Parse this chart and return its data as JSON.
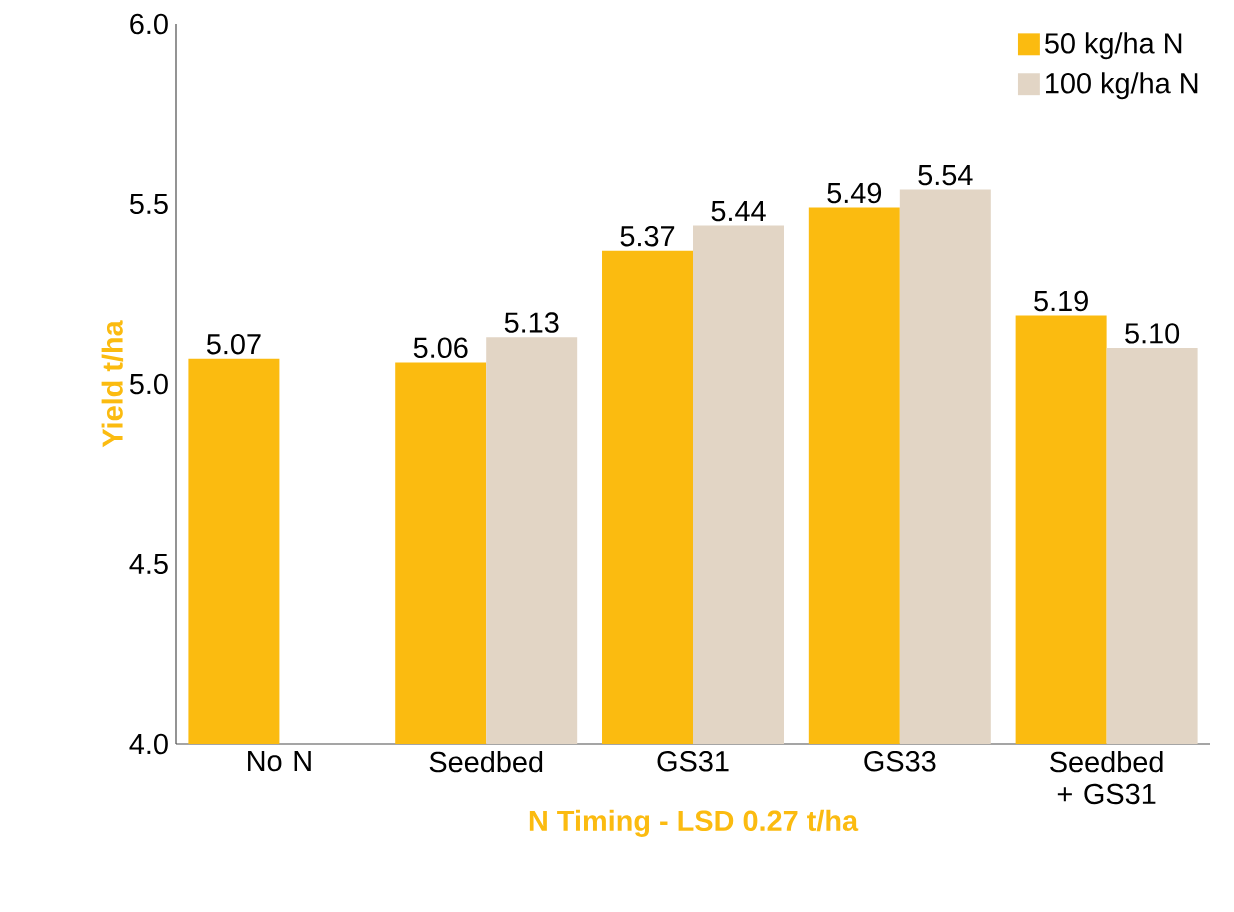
{
  "chart_data": {
    "type": "bar",
    "xlabel": "N Timing - LSD 0.27 t/ha",
    "ylabel": "Yield t/ha",
    "categories": [
      "No N",
      "Seedbed",
      "GS31",
      "GS33",
      "Seedbed + GS31"
    ],
    "series": [
      {
        "name": "50 kg/ha N",
        "color": "#fbbb10",
        "values": [
          5.07,
          5.06,
          5.37,
          5.49,
          5.19
        ],
        "value_labels": [
          "5.07",
          "5.06",
          "5.37",
          "5.49",
          "5.19"
        ]
      },
      {
        "name": "100 kg/ha N",
        "color": "#e2d5c5",
        "values": [
          null,
          5.13,
          5.44,
          5.54,
          5.1
        ],
        "value_labels": [
          null,
          "5.13",
          "5.44",
          "5.54",
          "5.10"
        ]
      }
    ],
    "ylim": [
      4.0,
      6.0
    ],
    "yticks": [
      {
        "value": 4.0,
        "label": "4.0"
      },
      {
        "value": 4.5,
        "label": "4.5"
      },
      {
        "value": 5.0,
        "label": "5.0"
      },
      {
        "value": 5.5,
        "label": "5.5"
      },
      {
        "value": 6.0,
        "label": "6.0"
      }
    ],
    "legend": "top right",
    "grid": false
  }
}
